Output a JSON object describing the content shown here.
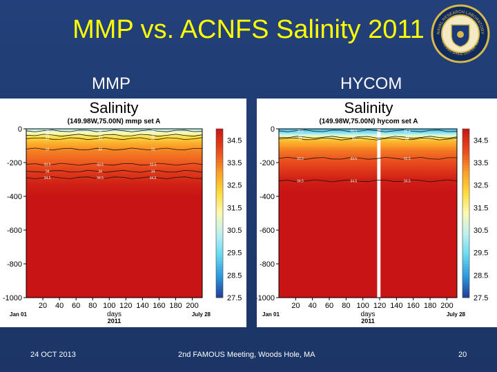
{
  "slide": {
    "title": "MMP vs. ACNFS Salinity 2011",
    "left_label": "MMP",
    "right_label": "HYCOM",
    "footer_date": "24 OCT 2013",
    "footer_meeting": "2nd FAMOUS Meeting, Woods Hole, MA",
    "page_number": "20",
    "logo_text_top": "NAVAL RESEARCH LABORATORY",
    "logo_text_bottom": "STENNIS SPACE CENTER, MS"
  },
  "chart_data": [
    {
      "type": "heatmap",
      "title": "Salinity",
      "subtitle": "(149.98W,75.00N) mmp set A",
      "xlabel": "days",
      "x_ticks": [
        20,
        40,
        60,
        80,
        100,
        120,
        140,
        160,
        180,
        200
      ],
      "xlim": [
        0,
        212
      ],
      "x_start_label": "Jan 01",
      "x_end_label": "July 28",
      "year_label": "2011",
      "ylim": [
        0,
        -1000
      ],
      "y_ticks": [
        0,
        -200,
        -400,
        -600,
        -800,
        -1000
      ],
      "y_tick_labels": [
        "0",
        "-200",
        "-400",
        "-600",
        "-800",
        "-1000"
      ],
      "colorbar": {
        "min": 27.5,
        "max": 34.5,
        "ticks": [
          34.5,
          33.5,
          32.5,
          31.5,
          30.5,
          29.5,
          28.5,
          27.5
        ],
        "tick_labels": [
          "34.5",
          "33.5",
          "32.5",
          "31.5",
          "30.5",
          "29.5",
          "28.5",
          "27.5"
        ]
      },
      "contours": [
        {
          "depth": -12,
          "label": "30"
        },
        {
          "depth": -38,
          "label": "31"
        },
        {
          "depth": -58,
          "label": "32"
        },
        {
          "depth": -120,
          "label": "33"
        },
        {
          "depth": -210,
          "label": "33.5"
        },
        {
          "depth": -252,
          "label": "34"
        },
        {
          "depth": -290,
          "label": "34.5"
        }
      ],
      "profile": [
        {
          "depth": 0,
          "value": 30.0
        },
        {
          "depth": -20,
          "value": 30.8
        },
        {
          "depth": -50,
          "value": 31.8
        },
        {
          "depth": -80,
          "value": 32.4
        },
        {
          "depth": -130,
          "value": 33.0
        },
        {
          "depth": -200,
          "value": 33.4
        },
        {
          "depth": -260,
          "value": 33.9
        },
        {
          "depth": -330,
          "value": 34.3
        },
        {
          "depth": -450,
          "value": 34.6
        },
        {
          "depth": -1000,
          "value": 34.8
        }
      ],
      "gap_days": []
    },
    {
      "type": "heatmap",
      "title": "Salinity",
      "subtitle": "(149.98W,75.00N) hycom set A",
      "xlabel": "days",
      "x_ticks": [
        20,
        40,
        60,
        80,
        100,
        120,
        140,
        160,
        180,
        200
      ],
      "xlim": [
        0,
        212
      ],
      "x_start_label": "Jan 01",
      "x_end_label": "July 28",
      "year_label": "2011",
      "ylim": [
        0,
        -1000
      ],
      "y_ticks": [
        0,
        -200,
        -400,
        -600,
        -800,
        -1000
      ],
      "y_tick_labels": [
        "0",
        "-200",
        "-400",
        "-600",
        "-800",
        "-1000"
      ],
      "colorbar": {
        "min": 27.5,
        "max": 34.5,
        "ticks": [
          34.5,
          33.5,
          32.5,
          31.5,
          30.5,
          29.5,
          28.5,
          27.5
        ],
        "tick_labels": [
          "34.5",
          "33.5",
          "32.5",
          "31.5",
          "30.5",
          "29.5",
          "28.5",
          "27.5"
        ]
      },
      "contours": [
        {
          "depth": -12,
          "label": "28.5"
        },
        {
          "depth": -50,
          "label": "31"
        },
        {
          "depth": -60,
          "label": "32"
        },
        {
          "depth": -175,
          "label": "33.5"
        },
        {
          "depth": -308,
          "label": "34.5"
        }
      ],
      "profile": [
        {
          "depth": 0,
          "value": 28.8
        },
        {
          "depth": -25,
          "value": 29.6
        },
        {
          "depth": -45,
          "value": 31.0
        },
        {
          "depth": -70,
          "value": 32.3
        },
        {
          "depth": -130,
          "value": 33.1
        },
        {
          "depth": -200,
          "value": 33.6
        },
        {
          "depth": -300,
          "value": 34.3
        },
        {
          "depth": -420,
          "value": 34.6
        },
        {
          "depth": -1000,
          "value": 34.8
        }
      ],
      "gap_days": [
        117,
        121
      ]
    }
  ]
}
